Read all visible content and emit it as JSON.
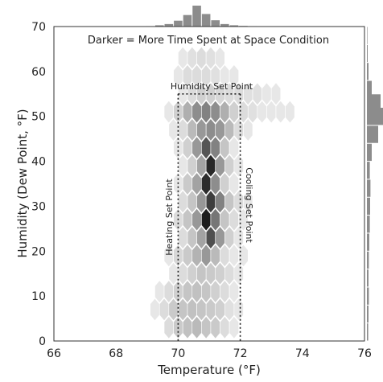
{
  "chart_data": {
    "type": "heatmap",
    "subtype": "hexbin-joint-plot",
    "title": "Darker = More Time Spent at Space Condition",
    "xlabel": "Temperature (°F)",
    "ylabel": "Humidity (Dew Point, °F)",
    "xlim": [
      66,
      76
    ],
    "ylim": [
      0,
      70
    ],
    "x_ticks": [
      "66",
      "68",
      "70",
      "72",
      "74",
      "76"
    ],
    "y_ticks": [
      "0",
      "10",
      "20",
      "30",
      "40",
      "50",
      "60",
      "70"
    ],
    "grid": false,
    "annotations": {
      "humidity_set_point": {
        "label": "Humidity Set Point",
        "value": 55
      },
      "heating_set_point": {
        "label": "Heating Set Point",
        "value": 70
      },
      "cooling_set_point": {
        "label": "Cooling Set Point",
        "value": 72
      }
    },
    "hex_columns_x": [
      68.8,
      69.1,
      69.4,
      69.7,
      70.0,
      70.3,
      70.6,
      70.9,
      71.2,
      71.5,
      71.8,
      72.1,
      72.4,
      72.7,
      73.0,
      73.3,
      73.6
    ],
    "hex_rows_y": [
      3,
      7,
      11,
      15,
      19,
      23,
      27,
      31,
      35,
      39,
      43,
      47,
      51,
      55,
      59,
      63
    ],
    "density_grid": [
      [
        0,
        0,
        0,
        0.1,
        0.18,
        0.22,
        0.25,
        0.2,
        0.18,
        0.1,
        0.05,
        0,
        0,
        0,
        0,
        0,
        0
      ],
      [
        0,
        0.05,
        0.1,
        0.18,
        0.2,
        0.22,
        0.2,
        0.18,
        0.15,
        0.08,
        0.05,
        0,
        0,
        0,
        0,
        0,
        0
      ],
      [
        0,
        0,
        0.05,
        0.1,
        0.15,
        0.2,
        0.22,
        0.2,
        0.15,
        0.1,
        0.05,
        0,
        0,
        0,
        0,
        0,
        0
      ],
      [
        0,
        0,
        0,
        0.05,
        0.1,
        0.15,
        0.2,
        0.18,
        0.15,
        0.1,
        0.05,
        0,
        0,
        0,
        0,
        0,
        0
      ],
      [
        0,
        0,
        0,
        0.05,
        0.12,
        0.18,
        0.28,
        0.4,
        0.25,
        0.1,
        0.05,
        0.05,
        0,
        0,
        0,
        0,
        0
      ],
      [
        0,
        0,
        0,
        0,
        0.1,
        0.2,
        0.35,
        0.72,
        0.4,
        0.15,
        0.05,
        0,
        0,
        0,
        0,
        0,
        0
      ],
      [
        0,
        0,
        0,
        0,
        0.1,
        0.2,
        0.4,
        0.95,
        0.55,
        0.2,
        0.1,
        0.05,
        0,
        0,
        0,
        0,
        0
      ],
      [
        0,
        0,
        0,
        0,
        0.1,
        0.2,
        0.4,
        0.8,
        0.5,
        0.2,
        0.1,
        0.05,
        0,
        0,
        0,
        0,
        0
      ],
      [
        0,
        0,
        0,
        0,
        0.05,
        0.18,
        0.35,
        0.88,
        0.45,
        0.15,
        0.05,
        0,
        0,
        0,
        0,
        0,
        0
      ],
      [
        0,
        0,
        0,
        0,
        0.05,
        0.15,
        0.35,
        0.9,
        0.4,
        0.15,
        0.05,
        0,
        0,
        0,
        0,
        0,
        0
      ],
      [
        0,
        0,
        0,
        0,
        0.05,
        0.15,
        0.4,
        0.7,
        0.5,
        0.2,
        0.05,
        0,
        0,
        0,
        0,
        0,
        0
      ],
      [
        0,
        0,
        0,
        0.05,
        0.1,
        0.25,
        0.4,
        0.45,
        0.4,
        0.25,
        0.1,
        0.05,
        0,
        0,
        0,
        0,
        0
      ],
      [
        0,
        0,
        0,
        0.05,
        0.15,
        0.3,
        0.45,
        0.5,
        0.45,
        0.3,
        0.15,
        0.1,
        0.08,
        0.05,
        0.05,
        0.05,
        0.05
      ],
      [
        0,
        0,
        0,
        0,
        0.05,
        0.1,
        0.15,
        0.15,
        0.12,
        0.1,
        0.1,
        0.08,
        0.08,
        0.05,
        0.05,
        0,
        0
      ],
      [
        0,
        0,
        0,
        0,
        0.05,
        0.1,
        0.1,
        0.1,
        0.08,
        0.05,
        0.05,
        0,
        0,
        0,
        0,
        0,
        0
      ],
      [
        0,
        0,
        0,
        0,
        0.05,
        0.08,
        0.1,
        0.08,
        0.05,
        0,
        0,
        0,
        0,
        0,
        0,
        0,
        0
      ]
    ],
    "marginal_x_density": [
      0.01,
      0.02,
      0.06,
      0.12,
      0.28,
      0.55,
      1.0,
      0.6,
      0.3,
      0.12,
      0.06,
      0.03,
      0.02,
      0.01,
      0.01,
      0.01,
      0.01
    ],
    "marginal_y_density": [
      0.08,
      0.1,
      0.12,
      0.1,
      0.12,
      0.15,
      0.18,
      0.2,
      0.22,
      0.18,
      0.3,
      0.7,
      1.0,
      0.85,
      0.3,
      0.1,
      0.05,
      0.03
    ],
    "marginal_y_centers": [
      2,
      6,
      10,
      14,
      18,
      22,
      26,
      30,
      34,
      38,
      42,
      46,
      50,
      53,
      56,
      60,
      64,
      68
    ],
    "colors": {
      "hex_max": "#111111",
      "hex_min": "#f2f2f2",
      "marginal": "#8c8c8c",
      "annotation_line": "#222222"
    }
  }
}
